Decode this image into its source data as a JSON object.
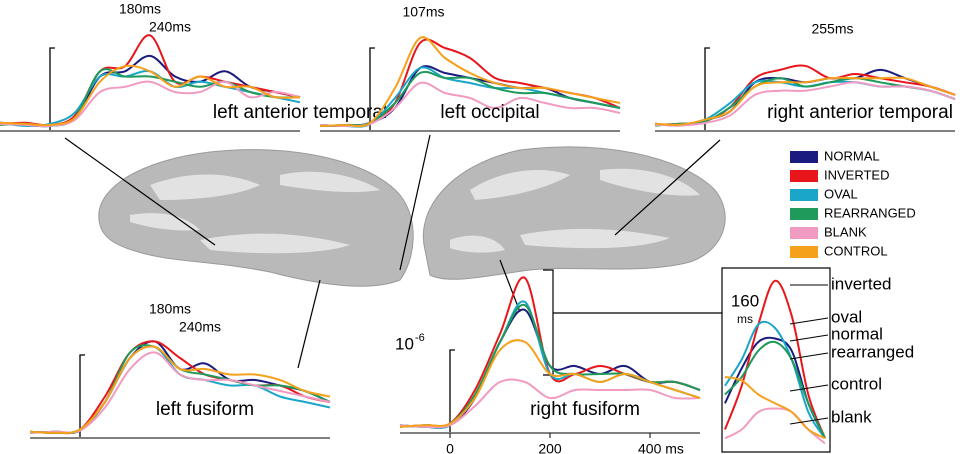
{
  "legend": [
    {
      "name": "NORMAL",
      "color": "#1b1a7e"
    },
    {
      "name": "INVERTED",
      "color": "#e8161b"
    },
    {
      "name": "OVAL",
      "color": "#1aa6c9"
    },
    {
      "name": "REARRANGED",
      "color": "#1f9a5b"
    },
    {
      "name": "BLANK",
      "color": "#f19bc2"
    },
    {
      "name": "CONTROL",
      "color": "#f5a11c"
    }
  ],
  "chart_data": [
    {
      "type": "line",
      "title": "left anterior temporal",
      "x": [
        -100,
        -50,
        0,
        50,
        100,
        150,
        200,
        250,
        300,
        350,
        400,
        450,
        500
      ],
      "xlim": [
        -100,
        500
      ],
      "ylim": [
        0,
        1
      ],
      "annotations": [
        {
          "x": 180,
          "text": "180ms"
        },
        {
          "x": 240,
          "text": "240ms"
        }
      ],
      "series": [
        {
          "values": [
            0.05,
            0.03,
            0.02,
            0.1,
            0.5,
            0.55,
            0.7,
            0.5,
            0.45,
            0.55,
            0.4,
            0.35,
            0.3
          ]
        },
        {
          "values": [
            0.04,
            0.05,
            0.03,
            0.12,
            0.55,
            0.6,
            0.9,
            0.45,
            0.5,
            0.45,
            0.4,
            0.35,
            0.3
          ]
        },
        {
          "values": [
            0.05,
            0.02,
            0.04,
            0.15,
            0.5,
            0.5,
            0.55,
            0.4,
            0.45,
            0.4,
            0.35,
            0.3,
            0.25
          ]
        },
        {
          "values": [
            0.03,
            0.04,
            0.02,
            0.1,
            0.55,
            0.5,
            0.5,
            0.45,
            0.4,
            0.45,
            0.35,
            0.3,
            0.3
          ]
        },
        {
          "values": [
            0.04,
            0.03,
            0.02,
            0.08,
            0.35,
            0.4,
            0.45,
            0.35,
            0.35,
            0.45,
            0.3,
            0.35,
            0.3
          ]
        },
        {
          "values": [
            0.05,
            0.04,
            0.03,
            0.1,
            0.45,
            0.6,
            0.55,
            0.4,
            0.5,
            0.4,
            0.4,
            0.3,
            0.3
          ]
        }
      ]
    },
    {
      "type": "line",
      "title": "left occipital",
      "x": [
        -100,
        -50,
        0,
        50,
        100,
        150,
        200,
        250,
        300,
        350,
        400,
        450,
        500
      ],
      "xlim": [
        -100,
        500
      ],
      "ylim": [
        0,
        1
      ],
      "annotations": [
        {
          "x": 107,
          "text": "107ms"
        }
      ],
      "series": [
        {
          "values": [
            0.03,
            0.02,
            0.05,
            0.2,
            0.6,
            0.55,
            0.5,
            0.45,
            0.4,
            0.4,
            0.3,
            0.25,
            0.2
          ]
        },
        {
          "values": [
            0.02,
            0.03,
            0.05,
            0.25,
            0.85,
            0.8,
            0.7,
            0.5,
            0.45,
            0.4,
            0.35,
            0.3,
            0.2
          ]
        },
        {
          "values": [
            0.03,
            0.02,
            0.04,
            0.3,
            0.6,
            0.5,
            0.45,
            0.4,
            0.4,
            0.35,
            0.3,
            0.25,
            0.2
          ]
        },
        {
          "values": [
            0.02,
            0.03,
            0.05,
            0.25,
            0.55,
            0.5,
            0.5,
            0.4,
            0.35,
            0.35,
            0.3,
            0.25,
            0.2
          ]
        },
        {
          "values": [
            0.03,
            0.02,
            0.04,
            0.2,
            0.45,
            0.35,
            0.3,
            0.2,
            0.3,
            0.25,
            0.2,
            0.2,
            0.15
          ]
        },
        {
          "values": [
            0.02,
            0.03,
            0.05,
            0.4,
            0.9,
            0.7,
            0.55,
            0.45,
            0.4,
            0.4,
            0.35,
            0.3,
            0.25
          ]
        }
      ]
    },
    {
      "type": "line",
      "title": "right anterior temporal",
      "x": [
        -100,
        -50,
        0,
        50,
        100,
        150,
        200,
        250,
        300,
        350,
        400,
        450,
        500
      ],
      "xlim": [
        -100,
        500
      ],
      "ylim": [
        0,
        1
      ],
      "annotations": [
        {
          "x": 255,
          "text": "255ms"
        }
      ],
      "series": [
        {
          "values": [
            0.05,
            0.03,
            0.1,
            0.2,
            0.55,
            0.6,
            0.55,
            0.6,
            0.6,
            0.7,
            0.6,
            0.5,
            0.4
          ]
        },
        {
          "values": [
            0.04,
            0.05,
            0.08,
            0.25,
            0.6,
            0.7,
            0.75,
            0.6,
            0.65,
            0.6,
            0.55,
            0.5,
            0.4
          ]
        },
        {
          "values": [
            0.05,
            0.04,
            0.1,
            0.3,
            0.55,
            0.55,
            0.5,
            0.55,
            0.55,
            0.5,
            0.5,
            0.45,
            0.35
          ]
        },
        {
          "values": [
            0.03,
            0.05,
            0.08,
            0.25,
            0.5,
            0.6,
            0.5,
            0.55,
            0.6,
            0.55,
            0.5,
            0.45,
            0.35
          ]
        },
        {
          "values": [
            0.04,
            0.03,
            0.06,
            0.15,
            0.4,
            0.45,
            0.45,
            0.5,
            0.55,
            0.5,
            0.5,
            0.45,
            0.35
          ]
        },
        {
          "values": [
            0.05,
            0.04,
            0.1,
            0.2,
            0.5,
            0.55,
            0.55,
            0.6,
            0.6,
            0.6,
            0.6,
            0.5,
            0.4
          ]
        }
      ]
    },
    {
      "type": "line",
      "title": "left fusiform",
      "x": [
        -100,
        -50,
        0,
        50,
        100,
        150,
        200,
        250,
        300,
        350,
        400,
        450,
        500
      ],
      "xlim": [
        -100,
        500
      ],
      "ylim": [
        0,
        1
      ],
      "annotations": [
        {
          "x": 180,
          "text": "180ms"
        },
        {
          "x": 240,
          "text": "240ms"
        }
      ],
      "series": [
        {
          "values": [
            0.02,
            0.03,
            0.04,
            0.3,
            0.7,
            0.85,
            0.6,
            0.65,
            0.5,
            0.5,
            0.45,
            0.4,
            0.3
          ]
        },
        {
          "values": [
            0.03,
            0.02,
            0.05,
            0.35,
            0.75,
            0.85,
            0.7,
            0.55,
            0.5,
            0.45,
            0.45,
            0.35,
            0.3
          ]
        },
        {
          "values": [
            0.02,
            0.03,
            0.04,
            0.3,
            0.7,
            0.8,
            0.55,
            0.5,
            0.45,
            0.45,
            0.35,
            0.3,
            0.25
          ]
        },
        {
          "values": [
            0.03,
            0.02,
            0.05,
            0.3,
            0.75,
            0.8,
            0.6,
            0.55,
            0.5,
            0.45,
            0.45,
            0.4,
            0.3
          ]
        },
        {
          "values": [
            0.02,
            0.03,
            0.04,
            0.25,
            0.6,
            0.75,
            0.55,
            0.5,
            0.5,
            0.45,
            0.4,
            0.35,
            0.3
          ]
        },
        {
          "values": [
            0.03,
            0.02,
            0.05,
            0.3,
            0.7,
            0.8,
            0.6,
            0.6,
            0.55,
            0.55,
            0.5,
            0.4,
            0.35
          ]
        }
      ]
    },
    {
      "type": "line",
      "title": "right fusiform",
      "x": [
        -100,
        -50,
        0,
        50,
        100,
        150,
        200,
        250,
        300,
        350,
        400,
        450,
        500
      ],
      "xlim": [
        -100,
        500
      ],
      "ylim": [
        0,
        1
      ],
      "xticks": [
        0,
        200,
        {
          "value": 400,
          "label": "400 ms"
        }
      ],
      "y_unit": {
        "base": "10",
        "exponent": "-6"
      },
      "series": [
        {
          "values": [
            0.03,
            0.02,
            0.03,
            0.2,
            0.55,
            0.75,
            0.4,
            0.4,
            0.35,
            0.4,
            0.3,
            0.3,
            0.25
          ]
        },
        {
          "values": [
            0.02,
            0.03,
            0.04,
            0.25,
            0.6,
            0.95,
            0.35,
            0.35,
            0.4,
            0.35,
            0.3,
            0.3,
            0.25
          ]
        },
        {
          "values": [
            0.03,
            0.02,
            0.03,
            0.22,
            0.55,
            0.8,
            0.35,
            0.35,
            0.3,
            0.35,
            0.3,
            0.25,
            0.2
          ]
        },
        {
          "values": [
            0.02,
            0.03,
            0.04,
            0.22,
            0.55,
            0.78,
            0.4,
            0.35,
            0.35,
            0.35,
            0.3,
            0.3,
            0.25
          ]
        },
        {
          "values": [
            0.03,
            0.02,
            0.03,
            0.15,
            0.3,
            0.3,
            0.2,
            0.25,
            0.25,
            0.25,
            0.25,
            0.2,
            0.2
          ]
        },
        {
          "values": [
            0.02,
            0.03,
            0.04,
            0.2,
            0.5,
            0.55,
            0.35,
            0.35,
            0.3,
            0.35,
            0.3,
            0.25,
            0.2
          ]
        }
      ]
    },
    {
      "type": "line",
      "x": [
        100,
        120,
        140,
        160,
        180,
        200,
        220
      ],
      "xlim": [
        100,
        220
      ],
      "ylim": [
        0,
        1
      ],
      "annotation": "160",
      "annotation_unit": "ms",
      "series": [
        {
          "label": "normal",
          "values": [
            0.25,
            0.45,
            0.6,
            0.62,
            0.55,
            0.25,
            0.05
          ]
        },
        {
          "label": "inverted",
          "values": [
            0.1,
            0.35,
            0.7,
            0.95,
            0.75,
            0.3,
            0.05
          ]
        },
        {
          "label": "oval",
          "values": [
            0.35,
            0.5,
            0.7,
            0.68,
            0.5,
            0.2,
            0.05
          ]
        },
        {
          "label": "rearranged",
          "values": [
            0.3,
            0.4,
            0.55,
            0.6,
            0.5,
            0.25,
            0.05
          ]
        },
        {
          "label": "blank",
          "values": [
            0.05,
            0.1,
            0.2,
            0.22,
            0.2,
            0.1,
            0.02
          ]
        },
        {
          "label": "control",
          "values": [
            0.4,
            0.38,
            0.3,
            0.25,
            0.2,
            0.1,
            0.05
          ]
        }
      ]
    }
  ]
}
